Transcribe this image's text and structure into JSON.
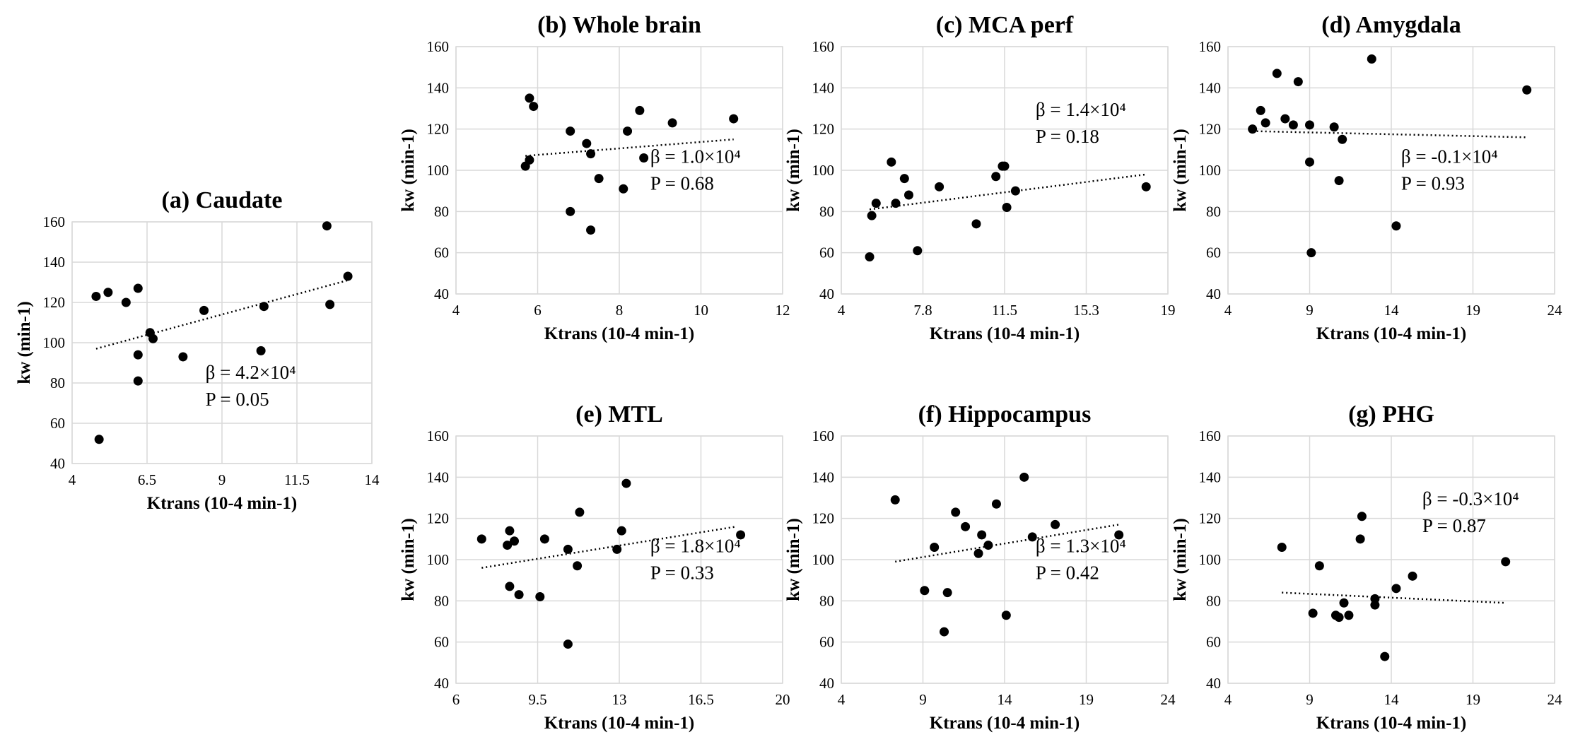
{
  "chart_data": [
    {
      "id": "a",
      "type": "scatter",
      "title": "(a) Caudate",
      "xlabel": "Ktrans (10-4 min-1)",
      "ylabel": "kw (min-1)",
      "xlim": [
        4,
        14
      ],
      "ylim": [
        40,
        160
      ],
      "xticks": [
        "4",
        "6.5",
        "9",
        "11.5",
        "14"
      ],
      "yticks": [
        "40",
        "60",
        "80",
        "100",
        "120",
        "140",
        "160"
      ],
      "grid": true,
      "points": [
        [
          4.8,
          123
        ],
        [
          5.2,
          125
        ],
        [
          5.8,
          120
        ],
        [
          6.2,
          127
        ],
        [
          6.2,
          94
        ],
        [
          6.2,
          81
        ],
        [
          6.6,
          105
        ],
        [
          6.7,
          102
        ],
        [
          7.7,
          93
        ],
        [
          8.4,
          116
        ],
        [
          10.3,
          96
        ],
        [
          10.4,
          118
        ],
        [
          12.5,
          158
        ],
        [
          12.6,
          119
        ],
        [
          13.2,
          133
        ],
        [
          4.9,
          52
        ]
      ],
      "trendline": [
        [
          4.8,
          97
        ],
        [
          13.2,
          131
        ]
      ],
      "stat_beta": "β = 4.2×10⁴",
      "stat_p": "P = 0.05",
      "stat_position": "bottom-right"
    },
    {
      "id": "b",
      "type": "scatter",
      "title": "(b) Whole brain",
      "xlabel": "Ktrans (10-4 min-1)",
      "ylabel": "kw (min-1)",
      "xlim": [
        4,
        12
      ],
      "ylim": [
        40,
        160
      ],
      "xticks": [
        "4",
        "6",
        "8",
        "10",
        "12"
      ],
      "yticks": [
        "40",
        "60",
        "80",
        "100",
        "120",
        "140",
        "160"
      ],
      "grid": true,
      "points": [
        [
          5.8,
          135
        ],
        [
          5.9,
          131
        ],
        [
          5.7,
          102
        ],
        [
          5.8,
          105
        ],
        [
          6.8,
          119
        ],
        [
          7.2,
          113
        ],
        [
          7.3,
          108
        ],
        [
          7.5,
          96
        ],
        [
          6.8,
          80
        ],
        [
          7.3,
          71
        ],
        [
          8.1,
          91
        ],
        [
          8.2,
          119
        ],
        [
          8.5,
          129
        ],
        [
          8.6,
          106
        ],
        [
          9.3,
          123
        ],
        [
          10.8,
          125
        ]
      ],
      "trendline": [
        [
          5.7,
          107
        ],
        [
          10.8,
          115
        ]
      ],
      "stat_beta": "β = 1.0×10⁴",
      "stat_p": "P = 0.68",
      "stat_position": "bottom-right"
    },
    {
      "id": "c",
      "type": "scatter",
      "title": "(c) MCA perf",
      "xlabel": "Ktrans (10-4 min-1)",
      "ylabel": "kw (min-1)",
      "xlim": [
        4,
        19
      ],
      "ylim": [
        40,
        160
      ],
      "xticks": [
        "4",
        "7.8",
        "11.5",
        "15.3",
        "19"
      ],
      "yticks": [
        "40",
        "60",
        "80",
        "100",
        "120",
        "140",
        "160"
      ],
      "grid": true,
      "points": [
        [
          5.3,
          58
        ],
        [
          5.4,
          78
        ],
        [
          5.6,
          84
        ],
        [
          6.3,
          104
        ],
        [
          6.5,
          84
        ],
        [
          6.9,
          96
        ],
        [
          7.1,
          88
        ],
        [
          7.5,
          61
        ],
        [
          8.5,
          92
        ],
        [
          10.2,
          74
        ],
        [
          11.1,
          97
        ],
        [
          11.4,
          102
        ],
        [
          11.5,
          102
        ],
        [
          11.6,
          82
        ],
        [
          12.0,
          90
        ],
        [
          18.0,
          92
        ]
      ],
      "trendline": [
        [
          5.3,
          81
        ],
        [
          18.0,
          98
        ]
      ],
      "stat_beta": "β = 1.4×10⁴",
      "stat_p": "P = 0.18",
      "stat_position": "top-right"
    },
    {
      "id": "d",
      "type": "scatter",
      "title": "(d) Amygdala",
      "xlabel": "Ktrans (10-4 min-1)",
      "ylabel": "kw (min-1)",
      "xlim": [
        4,
        24
      ],
      "ylim": [
        40,
        160
      ],
      "xticks": [
        "4",
        "9",
        "14",
        "19",
        "24"
      ],
      "yticks": [
        "40",
        "60",
        "80",
        "100",
        "120",
        "140",
        "160"
      ],
      "grid": true,
      "points": [
        [
          5.5,
          120
        ],
        [
          6.0,
          129
        ],
        [
          6.3,
          123
        ],
        [
          7.0,
          147
        ],
        [
          7.5,
          125
        ],
        [
          8.0,
          122
        ],
        [
          8.3,
          143
        ],
        [
          9.0,
          122
        ],
        [
          9.0,
          104
        ],
        [
          9.1,
          60
        ],
        [
          10.5,
          121
        ],
        [
          10.8,
          95
        ],
        [
          11.0,
          115
        ],
        [
          12.8,
          154
        ],
        [
          14.3,
          73
        ],
        [
          22.3,
          139
        ]
      ],
      "trendline": [
        [
          5.5,
          119
        ],
        [
          22.3,
          116
        ]
      ],
      "stat_beta": "β = -0.1×10⁴",
      "stat_p": "P = 0.93",
      "stat_position": "bottom-right"
    },
    {
      "id": "e",
      "type": "scatter",
      "title": "(e) MTL",
      "xlabel": "Ktrans (10-4 min-1)",
      "ylabel": "kw (min-1)",
      "xlim": [
        6,
        20
      ],
      "ylim": [
        40,
        160
      ],
      "xticks": [
        "6",
        "9.5",
        "13",
        "16.5",
        "20"
      ],
      "yticks": [
        "40",
        "60",
        "80",
        "100",
        "120",
        "140",
        "160"
      ],
      "grid": true,
      "points": [
        [
          7.1,
          110
        ],
        [
          8.2,
          107
        ],
        [
          8.3,
          114
        ],
        [
          8.5,
          109
        ],
        [
          8.3,
          87
        ],
        [
          8.7,
          83
        ],
        [
          9.6,
          82
        ],
        [
          9.8,
          110
        ],
        [
          10.8,
          105
        ],
        [
          10.8,
          59
        ],
        [
          11.2,
          97
        ],
        [
          11.3,
          123
        ],
        [
          12.9,
          105
        ],
        [
          13.1,
          114
        ],
        [
          13.3,
          137
        ],
        [
          18.2,
          112
        ]
      ],
      "trendline": [
        [
          7.1,
          96
        ],
        [
          18.0,
          116
        ]
      ],
      "stat_beta": "β = 1.8×10⁴",
      "stat_p": "P = 0.33",
      "stat_position": "bottom-right"
    },
    {
      "id": "f",
      "type": "scatter",
      "title": "(f) Hippocampus",
      "xlabel": "Ktrans (10-4 min-1)",
      "ylabel": "kw (min-1)",
      "xlim": [
        4,
        24
      ],
      "ylim": [
        40,
        160
      ],
      "xticks": [
        "4",
        "9",
        "14",
        "19",
        "24"
      ],
      "yticks": [
        "40",
        "60",
        "80",
        "100",
        "120",
        "140",
        "160"
      ],
      "grid": true,
      "points": [
        [
          7.3,
          129
        ],
        [
          9.1,
          85
        ],
        [
          9.7,
          106
        ],
        [
          10.3,
          65
        ],
        [
          10.5,
          84
        ],
        [
          11.0,
          123
        ],
        [
          11.6,
          116
        ],
        [
          12.4,
          103
        ],
        [
          12.6,
          112
        ],
        [
          13.0,
          107
        ],
        [
          13.5,
          127
        ],
        [
          14.1,
          73
        ],
        [
          15.2,
          140
        ],
        [
          15.7,
          111
        ],
        [
          17.1,
          117
        ],
        [
          21.0,
          112
        ]
      ],
      "trendline": [
        [
          7.3,
          99
        ],
        [
          21.0,
          117
        ]
      ],
      "stat_beta": "β = 1.3×10⁴",
      "stat_p": "P = 0.42",
      "stat_position": "bottom-right"
    },
    {
      "id": "g",
      "type": "scatter",
      "title": "(g) PHG",
      "xlabel": "Ktrans (10-4 min-1)",
      "ylabel": "kw (min-1)",
      "xlim": [
        4,
        24
      ],
      "ylim": [
        40,
        160
      ],
      "xticks": [
        "4",
        "9",
        "14",
        "19",
        "24"
      ],
      "yticks": [
        "40",
        "60",
        "80",
        "100",
        "120",
        "140",
        "160"
      ],
      "grid": true,
      "points": [
        [
          7.3,
          106
        ],
        [
          9.2,
          74
        ],
        [
          9.6,
          97
        ],
        [
          10.6,
          73
        ],
        [
          10.8,
          72
        ],
        [
          11.1,
          79
        ],
        [
          11.4,
          73
        ],
        [
          12.1,
          110
        ],
        [
          12.2,
          121
        ],
        [
          13.0,
          78
        ],
        [
          13.0,
          81
        ],
        [
          13.6,
          53
        ],
        [
          14.3,
          86
        ],
        [
          15.3,
          92
        ],
        [
          21.0,
          99
        ]
      ],
      "trendline": [
        [
          7.3,
          84
        ],
        [
          21.0,
          79
        ]
      ],
      "stat_beta": "β = -0.3×10⁴",
      "stat_p": "P = 0.87",
      "stat_position": "top-right"
    }
  ]
}
